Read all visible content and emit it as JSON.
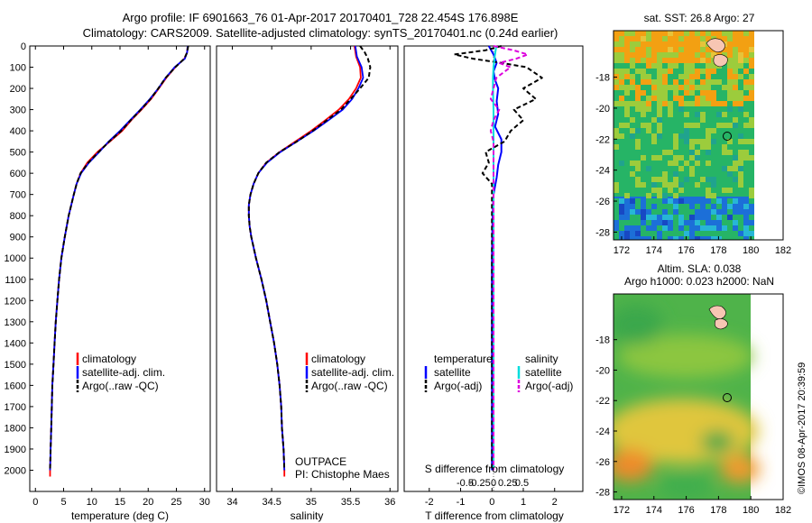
{
  "header": {
    "line1": "Argo profile: IF 6901663_76 01-Apr-2017 20170401_728 22.454S 176.898E",
    "line2": "Climatology: CARS2009. Satellite-adjusted climatology: synTS_20170401.nc (0.24d earlier)"
  },
  "watermark": "©IMOS 08-Apr-2017 20:39:59",
  "chart_data": [
    {
      "id": "temperature",
      "type": "line",
      "xlabel": "temperature (deg C)",
      "ylabel": "",
      "xlim": [
        -1,
        31
      ],
      "ylim": [
        0,
        2100
      ],
      "xticks": [
        0,
        5,
        10,
        15,
        20,
        25,
        30
      ],
      "xtick_labels": [
        "0",
        "5",
        "10",
        "15",
        "20",
        "25",
        "30"
      ],
      "yticks": [
        0,
        100,
        200,
        300,
        400,
        500,
        600,
        700,
        800,
        900,
        1000,
        1100,
        1200,
        1300,
        1400,
        1500,
        1600,
        1700,
        1800,
        1900,
        2000
      ],
      "ytick_labels": [
        "0",
        "100",
        "200",
        "300",
        "400",
        "500",
        "600",
        "700",
        "800",
        "900",
        "1000",
        "1100",
        "1200",
        "1300",
        "1400",
        "1500",
        "1600",
        "1700",
        "1800",
        "1900",
        "2000"
      ],
      "legend": [
        "climatology",
        "satellite-adj. clim.",
        "Argo(..raw -QC)"
      ],
      "annotations": [],
      "series": [
        {
          "name": "climatology",
          "color": "#ff0000",
          "dash": "",
          "depth": [
            0,
            30,
            60,
            100,
            150,
            200,
            250,
            300,
            350,
            400,
            450,
            500,
            550,
            600,
            650,
            700,
            800,
            900,
            1000,
            1100,
            1200,
            1300,
            1400,
            1500,
            1600,
            1700,
            1800,
            1900,
            2000,
            2030
          ],
          "values": [
            27.0,
            26.9,
            26.4,
            24.8,
            23.2,
            21.9,
            20.5,
            18.8,
            17.0,
            15.4,
            13.2,
            11.0,
            9.2,
            8.0,
            7.3,
            6.8,
            5.9,
            5.2,
            4.6,
            4.2,
            3.9,
            3.6,
            3.4,
            3.2,
            3.0,
            2.9,
            2.8,
            2.7,
            2.6,
            2.6
          ]
        },
        {
          "name": "satellite-adj. clim.",
          "color": "#0000ff",
          "dash": "",
          "depth": [
            0,
            30,
            60,
            100,
            150,
            200,
            250,
            300,
            350,
            400,
            450,
            500,
            550,
            600,
            650,
            700,
            800,
            900,
            1000,
            1100,
            1200,
            1300,
            1400,
            1500,
            1600,
            1700,
            1800,
            1900,
            2000
          ],
          "values": [
            27.0,
            26.9,
            26.5,
            24.7,
            23.1,
            21.8,
            20.3,
            18.6,
            16.8,
            15.0,
            13.0,
            11.3,
            9.5,
            8.1,
            7.3,
            6.8,
            5.9,
            5.2,
            4.6,
            4.2,
            3.9,
            3.6,
            3.4,
            3.2,
            3.0,
            2.9,
            2.8,
            2.7,
            2.6
          ]
        },
        {
          "name": "Argo(..raw -QC)",
          "color": "#000000",
          "dash": "5,3",
          "depth": [
            0,
            30,
            60,
            100,
            150,
            200,
            250,
            300,
            350,
            400,
            450,
            500,
            550,
            600,
            650,
            700,
            800,
            900,
            1000,
            1100,
            1200,
            1300,
            1400,
            1500,
            1600,
            1700,
            1800,
            1900,
            2000
          ],
          "values": [
            27.1,
            26.9,
            26.4,
            24.8,
            23.1,
            21.8,
            20.4,
            18.7,
            16.9,
            15.2,
            13.1,
            11.2,
            9.4,
            8.0,
            7.3,
            6.8,
            5.9,
            5.2,
            4.6,
            4.2,
            3.9,
            3.6,
            3.4,
            3.2,
            3.0,
            2.9,
            2.8,
            2.7,
            2.6
          ]
        }
      ]
    },
    {
      "id": "salinity",
      "type": "line",
      "xlabel": "salinity",
      "ylabel": "",
      "xlim": [
        33.8,
        36.1
      ],
      "ylim": [
        0,
        2100
      ],
      "xticks": [
        34,
        34.5,
        35,
        35.5,
        36
      ],
      "xtick_labels": [
        "34",
        "34.5",
        "35",
        "35.5",
        "36"
      ],
      "legend": [
        "climatology",
        "satellite-adj. clim.",
        "Argo(..raw -QC)"
      ],
      "annotations": [
        "OUTPACE",
        "PI: Chistophe Maes"
      ],
      "series": [
        {
          "name": "climatology",
          "color": "#ff0000",
          "dash": "",
          "depth": [
            0,
            50,
            100,
            150,
            200,
            250,
            300,
            350,
            400,
            450,
            500,
            550,
            600,
            650,
            700,
            750,
            800,
            850,
            900,
            1000,
            1100,
            1200,
            1300,
            1400,
            1500,
            1600,
            1700,
            1800,
            1900,
            2000,
            2030
          ],
          "values": [
            35.55,
            35.57,
            35.62,
            35.63,
            35.57,
            35.48,
            35.35,
            35.18,
            35.0,
            34.8,
            34.6,
            34.43,
            34.33,
            34.27,
            34.23,
            34.21,
            34.21,
            34.22,
            34.24,
            34.3,
            34.37,
            34.43,
            34.48,
            34.53,
            34.57,
            34.6,
            34.62,
            34.63,
            34.65,
            34.66,
            34.66
          ]
        },
        {
          "name": "satellite-adj. clim.",
          "color": "#0000ff",
          "dash": "",
          "depth": [
            0,
            50,
            100,
            150,
            200,
            250,
            300,
            350,
            400,
            450,
            500,
            550,
            600,
            650,
            700,
            750,
            800,
            850,
            900,
            1000,
            1100,
            1200,
            1300,
            1400,
            1500,
            1600,
            1700,
            1800,
            1900,
            2000
          ],
          "values": [
            35.56,
            35.58,
            35.64,
            35.66,
            35.6,
            35.52,
            35.4,
            35.22,
            35.03,
            34.82,
            34.61,
            34.44,
            34.33,
            34.27,
            34.23,
            34.21,
            34.21,
            34.22,
            34.24,
            34.3,
            34.37,
            34.43,
            34.48,
            34.53,
            34.57,
            34.6,
            34.62,
            34.63,
            34.65,
            34.66
          ]
        },
        {
          "name": "Argo(..raw -QC)",
          "color": "#000000",
          "dash": "5,3",
          "depth": [
            0,
            30,
            60,
            100,
            150,
            200,
            250,
            300,
            350,
            400,
            450,
            500,
            550,
            600,
            650,
            700,
            750,
            800,
            850,
            900,
            1000,
            1100,
            1200,
            1300,
            1400,
            1500,
            1600,
            1700,
            1800,
            1900,
            2000
          ],
          "values": [
            35.62,
            35.68,
            35.72,
            35.75,
            35.73,
            35.62,
            35.5,
            35.38,
            35.2,
            35.02,
            34.82,
            34.6,
            34.43,
            34.33,
            34.27,
            34.23,
            34.21,
            34.21,
            34.22,
            34.24,
            34.3,
            34.37,
            34.43,
            34.48,
            34.53,
            34.57,
            34.6,
            34.62,
            34.63,
            34.65,
            34.66
          ]
        }
      ]
    },
    {
      "id": "difference",
      "type": "line",
      "xlabel": "T difference from climatology",
      "xlabel_top": "S difference from climatology",
      "xlim": [
        -2.8,
        2.9
      ],
      "ylim": [
        0,
        2100
      ],
      "xticks": [
        -2,
        -1,
        0,
        1,
        2
      ],
      "xtick_labels": [
        "-2",
        "-1",
        "0",
        "1",
        "2"
      ],
      "sticks": [
        -0.5,
        -0.25,
        0,
        0.25,
        0.5
      ],
      "stick_labels": [
        "-0.5",
        "-0.25",
        "0",
        "0.25",
        "0.5"
      ],
      "legend_temperature_header": "temperature",
      "legend_salinity_header": "salinity",
      "legend": [
        "satellite",
        "Argo(-adj)",
        "satellite",
        "Argo(-adj)"
      ],
      "series": [
        {
          "name": "T satellite",
          "color": "#0000ff",
          "dash": "",
          "depth": [
            0,
            40,
            80,
            120,
            160,
            200,
            260,
            320,
            380,
            440,
            500,
            560,
            620,
            700,
            800,
            1000,
            1200,
            1400,
            1600,
            1800,
            2000
          ],
          "values": [
            -0.1,
            0.05,
            0.15,
            0.05,
            0.1,
            0.2,
            0.15,
            0.2,
            0.1,
            0.3,
            0.3,
            0.2,
            0.15,
            0.05,
            0.02,
            0.0,
            0.0,
            0.0,
            0.0,
            0.0,
            0.0
          ]
        },
        {
          "name": "T Argo(-adj)",
          "color": "#000000",
          "dash": "5,3",
          "depth": [
            0,
            20,
            40,
            60,
            80,
            100,
            150,
            200,
            250,
            300,
            350,
            400,
            450,
            500,
            550,
            600,
            650,
            700,
            800,
            900,
            1000,
            1200,
            1400,
            1600,
            1800,
            2000
          ],
          "values": [
            0.3,
            -0.2,
            -1.2,
            -0.6,
            0.3,
            1.1,
            1.6,
            1.0,
            1.4,
            0.7,
            1.0,
            0.6,
            0.4,
            -0.2,
            -0.1,
            -0.3,
            0.0,
            0.0,
            0.0,
            0.0,
            0.0,
            0.0,
            0.0,
            0.0,
            0.0,
            0.0
          ]
        },
        {
          "name": "S satellite",
          "color": "#00dddd",
          "dash": "",
          "depth": [
            0,
            50,
            100,
            150,
            200,
            300,
            400,
            500,
            600,
            700,
            800,
            1000,
            1200,
            1400,
            1600,
            1800,
            2000
          ],
          "values": [
            0.05,
            0.02,
            0.0,
            -0.01,
            -0.01,
            0.0,
            0.0,
            0.0,
            0.0,
            0.0,
            0.0,
            0.0,
            0.0,
            0.0,
            0.0,
            0.0,
            0.0
          ]
        },
        {
          "name": "S Argo(-adj)",
          "color": "#dd00dd",
          "dash": "5,3",
          "depth": [
            0,
            20,
            40,
            60,
            80,
            100,
            150,
            200,
            250,
            300,
            350,
            400,
            450,
            500,
            550,
            600,
            700,
            800,
            1000,
            1200,
            1400,
            1600,
            1800,
            2000
          ],
          "values": [
            0.0,
            0.35,
            0.6,
            0.4,
            0.1,
            0.3,
            0.05,
            0.0,
            -0.05,
            0.1,
            0.0,
            -0.05,
            0.0,
            0.0,
            0.0,
            0.0,
            0.0,
            0.0,
            0.0,
            0.0,
            0.0,
            0.0,
            0.0,
            0.0
          ]
        }
      ]
    },
    {
      "id": "sst_map",
      "type": "heatmap",
      "title": "sat. SST: 26.8 Argo: 27",
      "xlim": [
        171.5,
        182
      ],
      "ylim": [
        -28.5,
        -15
      ],
      "xticks": [
        172,
        174,
        176,
        178,
        180,
        182
      ],
      "xtick_labels": [
        "172",
        "174",
        "176",
        "178",
        "180",
        "182"
      ],
      "yticks": [
        -18,
        -20,
        -22,
        -24,
        -26,
        -28
      ],
      "ytick_labels": [
        "-18",
        "-20",
        "-22",
        "-24",
        "-26",
        "-28"
      ],
      "argo_position": [
        176.898,
        -22.454
      ],
      "colors": {
        "warm": "#f3a012",
        "mid": "#9ccc3c",
        "cool": "#26b466",
        "cold": "#1c6fd8"
      }
    },
    {
      "id": "sla_map",
      "type": "heatmap",
      "title": "Altim. SLA: 0.038",
      "subtitle": "Argo h1000: 0.023 h2000: NaN",
      "xlim": [
        171.5,
        182
      ],
      "ylim": [
        -28.5,
        -15
      ],
      "xticks": [
        172,
        174,
        176,
        178,
        180,
        182
      ],
      "xtick_labels": [
        "172",
        "174",
        "176",
        "178",
        "180",
        "182"
      ],
      "yticks": [
        -18,
        -20,
        -22,
        -24,
        -26,
        -28
      ],
      "ytick_labels": [
        "-18",
        "-20",
        "-22",
        "-24",
        "-26",
        "-28"
      ],
      "argo_position": [
        176.898,
        -22.454
      ],
      "colors": {
        "green": "#3fae4e",
        "lime": "#9fce44",
        "yellow": "#e7c93a",
        "orange": "#ee8b2b"
      }
    }
  ]
}
